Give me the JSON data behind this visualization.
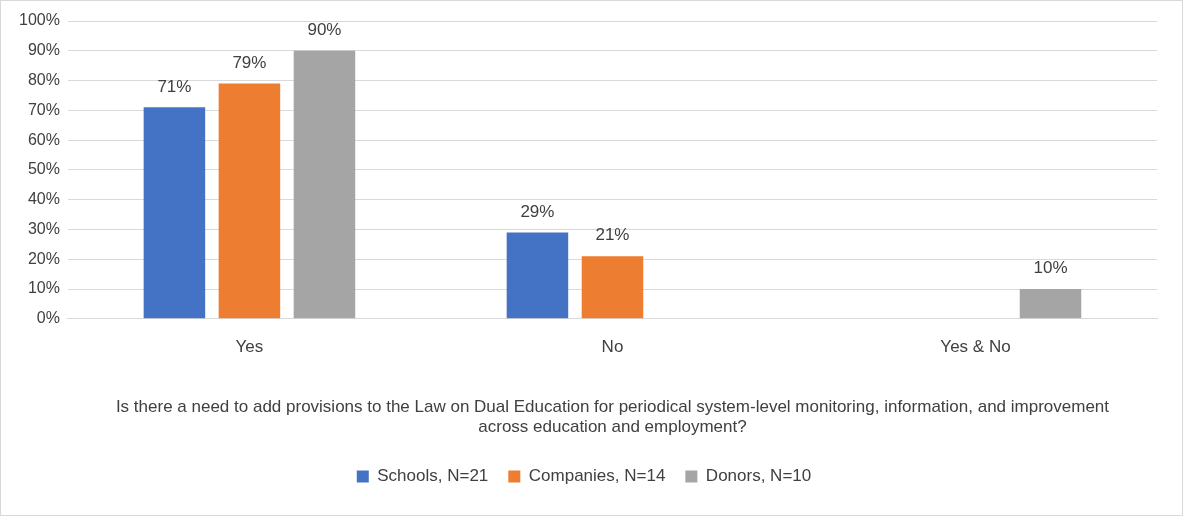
{
  "chart_data": {
    "type": "bar",
    "categories": [
      "Yes",
      "No",
      "Yes & No"
    ],
    "xlabel": "Is there a need to add provisions to the Law on Dual Education for periodical system-level monitoring, information, and improvement across education and employment?",
    "series": [
      {
        "name": "Schools, N=21",
        "color": "#4472c4",
        "values": [
          71,
          29,
          null
        ],
        "value_labels": [
          "71%",
          "29%",
          null
        ]
      },
      {
        "name": "Companies, N=14",
        "color": "#ed7d31",
        "values": [
          79,
          21,
          null
        ],
        "value_labels": [
          "79%",
          "21%",
          null
        ]
      },
      {
        "name": "Donors, N=10",
        "color": "#a5a5a5",
        "values": [
          90,
          null,
          10
        ],
        "value_labels": [
          "90%",
          null,
          "10%"
        ]
      }
    ],
    "ylim": [
      0,
      100
    ],
    "yticks": [
      {
        "value": 0,
        "label": "0%"
      },
      {
        "value": 10,
        "label": "10%"
      },
      {
        "value": 20,
        "label": "20%"
      },
      {
        "value": 30,
        "label": "30%"
      },
      {
        "value": 40,
        "label": "40%"
      },
      {
        "value": 50,
        "label": "50%"
      },
      {
        "value": 60,
        "label": "60%"
      },
      {
        "value": 70,
        "label": "70%"
      },
      {
        "value": 80,
        "label": "80%"
      },
      {
        "value": 90,
        "label": "90%"
      },
      {
        "value": 100,
        "label": "100%"
      }
    ],
    "grid": "y",
    "legend": "bottom"
  }
}
